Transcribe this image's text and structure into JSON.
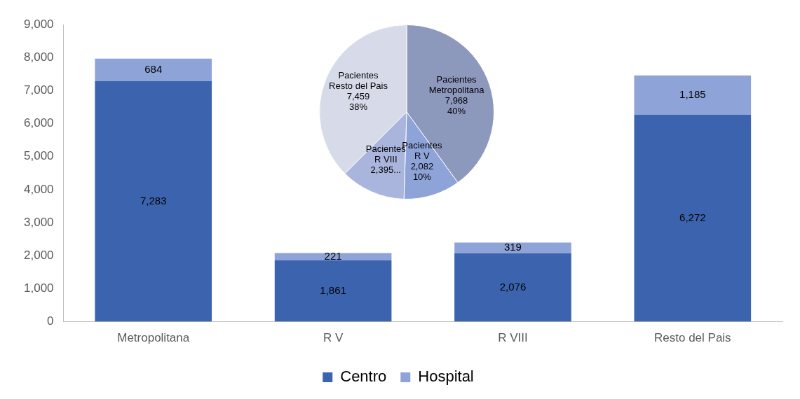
{
  "chart_data": [
    {
      "type": "bar",
      "stacked": true,
      "categories": [
        "Metropolitana",
        "R V",
        "R VIII",
        "Resto del Pais"
      ],
      "series": [
        {
          "name": "Centro",
          "color": "#3c64ae",
          "values": [
            7283,
            1861,
            2076,
            6272
          ],
          "value_labels": [
            "7,283",
            "1,861",
            "2,076",
            "6,272"
          ]
        },
        {
          "name": "Hospital",
          "color": "#8ea3d8",
          "values": [
            684,
            221,
            319,
            1185
          ],
          "value_labels": [
            "684",
            "221",
            "319",
            "1,185"
          ]
        }
      ],
      "ylim": [
        0,
        9000
      ],
      "yticks": [
        0,
        {
          "value": 1000,
          "label": "1,000"
        },
        {
          "value": 2000,
          "label": "2,000"
        },
        {
          "value": 3000,
          "label": "3,000"
        },
        {
          "value": 4000,
          "label": "4,000"
        },
        {
          "value": 5000,
          "label": "5,000"
        },
        {
          "value": 6000,
          "label": "6,000"
        },
        {
          "value": 7000,
          "label": "7,000"
        },
        {
          "value": 8000,
          "label": "8,000"
        },
        {
          "value": 9000,
          "label": "9,000"
        }
      ],
      "grid": false,
      "legend": "bottom"
    },
    {
      "type": "pie",
      "categories": [
        "Pacientes Metropolitana",
        "Pacientes R V",
        "Pacientes R VIII",
        "Pacientes Resto del Pais"
      ],
      "values": [
        7968,
        2082,
        2395,
        7459
      ],
      "colors": [
        "#8d98bd",
        "#8ea3d8",
        "#a9b5dc",
        "#d7dbe9"
      ],
      "value_labels": [
        "7,968\n40%",
        "2,082\n10%",
        "2,395...",
        "7,459\n38%"
      ],
      "legend": false
    }
  ]
}
